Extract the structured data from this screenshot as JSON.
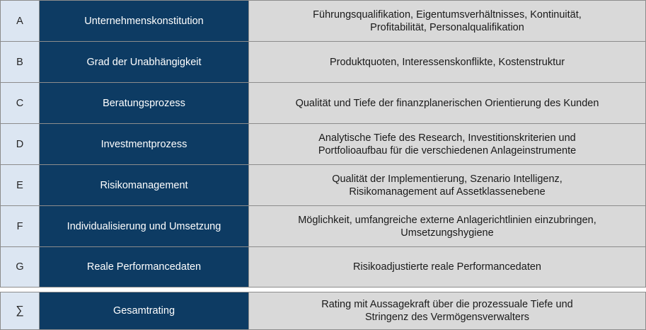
{
  "rows": [
    {
      "letter": "A",
      "name": "Unternehmenskonstitution",
      "desc": [
        "Führungsqualifikation, Eigentumsverhältnisses, Kontinuität,",
        "Profitabilität, Personalqualifikation"
      ]
    },
    {
      "letter": "B",
      "name": "Grad der Unabhängigkeit",
      "desc": [
        "Produktquoten, Interessenskonflikte, Kostenstruktur"
      ]
    },
    {
      "letter": "C",
      "name": "Beratungsprozess",
      "desc": [
        "Qualität und Tiefe der finanzplanerischen Orientierung des Kunden"
      ]
    },
    {
      "letter": "D",
      "name": "Investmentprozess",
      "desc": [
        "Analytische Tiefe des Research, Investitionskriterien und",
        "Portfolioaufbau für die verschiedenen Anlageinstrumente"
      ]
    },
    {
      "letter": "E",
      "name": "Risikomanagement",
      "desc": [
        "Qualität der Implementierung, Szenario Intelligenz,",
        "Risikomanagement auf Assetklassenebene"
      ]
    },
    {
      "letter": "F",
      "name": "Individualisierung und Umsetzung",
      "desc": [
        "Möglichkeit, umfangreiche externe Anlagerichtlinien einzubringen,",
        "Umsetzungshygiene"
      ]
    },
    {
      "letter": "G",
      "name": "Reale Performancedaten",
      "desc": [
        "Risikoadjustierte reale Performancedaten"
      ]
    }
  ],
  "total": {
    "letter": "∑",
    "name": "Gesamtrating",
    "desc": [
      "Rating mit Aussagekraft über die prozessuale Tiefe und",
      "Stringenz des Vermögensverwalters"
    ]
  }
}
